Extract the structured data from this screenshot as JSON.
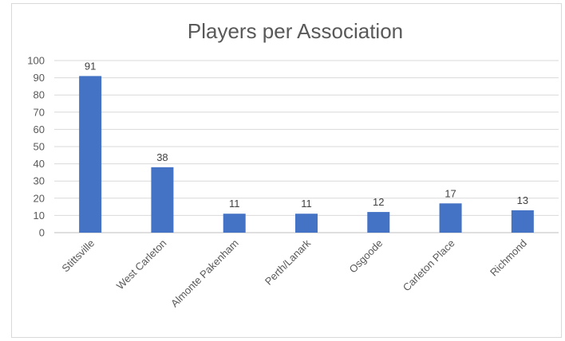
{
  "chart_data": {
    "type": "bar",
    "title": "Players per Association",
    "categories": [
      "Stittsville",
      "West Carleton",
      "Almonte Pakenham",
      "Perth/Lanark",
      "Osgoode",
      "Carleton Place",
      "Richmond"
    ],
    "values": [
      91,
      38,
      11,
      11,
      12,
      17,
      13
    ],
    "ylim": [
      0,
      100
    ],
    "yticks": [
      0,
      10,
      20,
      30,
      40,
      50,
      60,
      70,
      80,
      90,
      100
    ],
    "grid": true,
    "legend": "none",
    "bar_color": "#4472c4",
    "data_labels": true
  }
}
